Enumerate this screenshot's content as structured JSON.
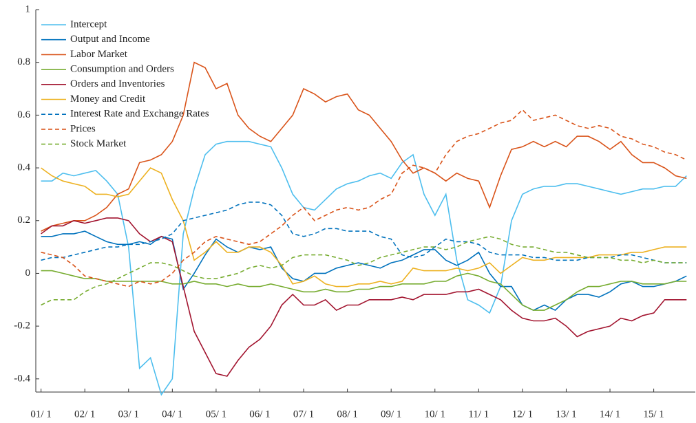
{
  "chart_data": {
    "type": "line",
    "x": [
      2001,
      2001.25,
      2001.5,
      2001.75,
      2002,
      2002.25,
      2002.5,
      2002.75,
      2003,
      2003.25,
      2003.5,
      2003.75,
      2004,
      2004.25,
      2004.5,
      2004.75,
      2005,
      2005.25,
      2005.5,
      2005.75,
      2006,
      2006.25,
      2006.5,
      2006.75,
      2007,
      2007.25,
      2007.5,
      2007.75,
      2008,
      2008.25,
      2008.5,
      2008.75,
      2009,
      2009.25,
      2009.5,
      2009.75,
      2010,
      2010.25,
      2010.5,
      2010.75,
      2011,
      2011.25,
      2011.5,
      2011.75,
      2012,
      2012.25,
      2012.5,
      2012.75,
      2013,
      2013.25,
      2013.5,
      2013.75,
      2014,
      2014.25,
      2014.5,
      2014.75,
      2015,
      2015.25,
      2015.5,
      2015.75
    ],
    "series": [
      {
        "name": "Intercept",
        "color": "#4dbeee",
        "dash": false,
        "values": [
          0.35,
          0.35,
          0.38,
          0.37,
          0.38,
          0.39,
          0.35,
          0.3,
          0.1,
          -0.36,
          -0.32,
          -0.46,
          -0.4,
          0.15,
          0.32,
          0.45,
          0.49,
          0.5,
          0.5,
          0.5,
          0.49,
          0.48,
          0.4,
          0.3,
          0.25,
          0.24,
          0.28,
          0.32,
          0.34,
          0.35,
          0.37,
          0.38,
          0.36,
          0.42,
          0.45,
          0.3,
          0.22,
          0.3,
          0.05,
          -0.1,
          -0.12,
          -0.15,
          -0.05,
          0.2,
          0.3,
          0.32,
          0.33,
          0.33,
          0.34,
          0.34,
          0.33,
          0.32,
          0.31,
          0.3,
          0.31,
          0.32,
          0.32,
          0.33,
          0.33,
          0.37
        ]
      },
      {
        "name": "Output and Income",
        "color": "#0072bd",
        "dash": false,
        "values": [
          0.14,
          0.14,
          0.15,
          0.15,
          0.16,
          0.14,
          0.12,
          0.11,
          0.11,
          0.12,
          0.11,
          0.14,
          0.13,
          -0.06,
          0.0,
          0.07,
          0.13,
          0.1,
          0.08,
          0.1,
          0.09,
          0.1,
          0.02,
          -0.02,
          -0.03,
          0.0,
          0.0,
          0.02,
          0.03,
          0.04,
          0.03,
          0.02,
          0.04,
          0.05,
          0.07,
          0.09,
          0.09,
          0.05,
          0.03,
          0.05,
          0.08,
          0.0,
          -0.05,
          -0.05,
          -0.12,
          -0.14,
          -0.12,
          -0.14,
          -0.1,
          -0.08,
          -0.08,
          -0.09,
          -0.07,
          -0.04,
          -0.03,
          -0.05,
          -0.05,
          -0.04,
          -0.03,
          -0.01
        ]
      },
      {
        "name": "Labor Market",
        "color": "#d95319",
        "dash": false,
        "values": [
          0.16,
          0.18,
          0.19,
          0.2,
          0.2,
          0.22,
          0.25,
          0.3,
          0.32,
          0.42,
          0.43,
          0.45,
          0.5,
          0.6,
          0.8,
          0.78,
          0.7,
          0.72,
          0.6,
          0.55,
          0.52,
          0.5,
          0.55,
          0.6,
          0.7,
          0.68,
          0.65,
          0.67,
          0.68,
          0.62,
          0.6,
          0.55,
          0.5,
          0.43,
          0.38,
          0.4,
          0.38,
          0.35,
          0.38,
          0.36,
          0.35,
          0.25,
          0.37,
          0.47,
          0.48,
          0.5,
          0.48,
          0.5,
          0.48,
          0.52,
          0.52,
          0.5,
          0.47,
          0.5,
          0.45,
          0.42,
          0.42,
          0.4,
          0.37,
          0.36
        ]
      },
      {
        "name": "Consumption and Orders",
        "color": "#77ac30",
        "dash": false,
        "values": [
          0.01,
          0.01,
          0,
          -0.01,
          -0.02,
          -0.02,
          -0.03,
          -0.03,
          -0.03,
          -0.03,
          -0.03,
          -0.03,
          -0.04,
          -0.04,
          -0.03,
          -0.04,
          -0.04,
          -0.05,
          -0.04,
          -0.05,
          -0.05,
          -0.04,
          -0.05,
          -0.06,
          -0.07,
          -0.07,
          -0.06,
          -0.07,
          -0.07,
          -0.06,
          -0.06,
          -0.05,
          -0.05,
          -0.04,
          -0.04,
          -0.04,
          -0.03,
          -0.03,
          -0.01,
          0,
          -0.01,
          -0.03,
          -0.04,
          -0.08,
          -0.12,
          -0.14,
          -0.14,
          -0.12,
          -0.1,
          -0.07,
          -0.05,
          -0.05,
          -0.04,
          -0.03,
          -0.03,
          -0.04,
          -0.04,
          -0.04,
          -0.03,
          -0.03
        ]
      },
      {
        "name": "Orders and Inventories",
        "color": "#a2142f",
        "dash": false,
        "values": [
          0.15,
          0.18,
          0.18,
          0.2,
          0.19,
          0.2,
          0.21,
          0.21,
          0.2,
          0.15,
          0.12,
          0.14,
          0.12,
          -0.05,
          -0.22,
          -0.3,
          -0.38,
          -0.39,
          -0.33,
          -0.28,
          -0.25,
          -0.2,
          -0.12,
          -0.08,
          -0.12,
          -0.12,
          -0.1,
          -0.14,
          -0.12,
          -0.12,
          -0.1,
          -0.1,
          -0.1,
          -0.09,
          -0.1,
          -0.08,
          -0.08,
          -0.08,
          -0.07,
          -0.07,
          -0.06,
          -0.08,
          -0.1,
          -0.14,
          -0.17,
          -0.18,
          -0.18,
          -0.17,
          -0.2,
          -0.24,
          -0.22,
          -0.21,
          -0.2,
          -0.17,
          -0.18,
          -0.16,
          -0.15,
          -0.1,
          -0.1,
          -0.1
        ]
      },
      {
        "name": "Money and Credit",
        "color": "#edb120",
        "dash": false,
        "values": [
          0.4,
          0.37,
          0.35,
          0.34,
          0.33,
          0.3,
          0.3,
          0.29,
          0.3,
          0.35,
          0.4,
          0.38,
          0.28,
          0.2,
          0.05,
          0.08,
          0.12,
          0.08,
          0.08,
          0.1,
          0.1,
          0.08,
          0.03,
          -0.04,
          -0.03,
          -0.01,
          -0.04,
          -0.05,
          -0.05,
          -0.04,
          -0.04,
          -0.03,
          -0.04,
          -0.03,
          0.02,
          0.01,
          0.01,
          0.01,
          0.02,
          0.01,
          0.02,
          0.04,
          0.0,
          0.03,
          0.06,
          0.05,
          0.05,
          0.06,
          0.06,
          0.06,
          0.06,
          0.07,
          0.07,
          0.07,
          0.08,
          0.08,
          0.09,
          0.1,
          0.1,
          0.1
        ]
      },
      {
        "name": "Interest Rate and Exchange Rates",
        "color": "#0072bd",
        "dash": true,
        "values": [
          0.05,
          0.06,
          0.06,
          0.07,
          0.08,
          0.09,
          0.1,
          0.1,
          0.11,
          0.11,
          0.12,
          0.13,
          0.15,
          0.2,
          0.21,
          0.22,
          0.23,
          0.24,
          0.26,
          0.27,
          0.27,
          0.26,
          0.22,
          0.15,
          0.14,
          0.15,
          0.17,
          0.17,
          0.16,
          0.16,
          0.16,
          0.14,
          0.13,
          0.07,
          0.06,
          0.07,
          0.1,
          0.13,
          0.12,
          0.12,
          0.11,
          0.08,
          0.07,
          0.07,
          0.07,
          0.06,
          0.06,
          0.05,
          0.05,
          0.05,
          0.06,
          0.06,
          0.06,
          0.07,
          0.07,
          0.06,
          0.05,
          0.04,
          0.04,
          0.04
        ]
      },
      {
        "name": "Prices",
        "color": "#d95319",
        "dash": true,
        "values": [
          0.08,
          0.07,
          0.06,
          0.03,
          -0.01,
          -0.02,
          -0.03,
          -0.04,
          -0.05,
          -0.03,
          -0.04,
          -0.03,
          0.0,
          0.05,
          0.08,
          0.12,
          0.14,
          0.13,
          0.12,
          0.11,
          0.12,
          0.15,
          0.18,
          0.22,
          0.25,
          0.2,
          0.22,
          0.24,
          0.25,
          0.24,
          0.25,
          0.28,
          0.3,
          0.38,
          0.41,
          0.4,
          0.38,
          0.45,
          0.5,
          0.52,
          0.53,
          0.55,
          0.57,
          0.58,
          0.62,
          0.58,
          0.59,
          0.6,
          0.58,
          0.56,
          0.55,
          0.56,
          0.55,
          0.52,
          0.51,
          0.49,
          0.48,
          0.46,
          0.45,
          0.43
        ]
      },
      {
        "name": "Stock Market",
        "color": "#77ac30",
        "dash": true,
        "values": [
          -0.12,
          -0.1,
          -0.1,
          -0.1,
          -0.07,
          -0.05,
          -0.04,
          -0.02,
          0,
          0.02,
          0.04,
          0.04,
          0.03,
          0.01,
          -0.01,
          -0.02,
          -0.02,
          -0.01,
          0,
          0.02,
          0.03,
          0.02,
          0.03,
          0.06,
          0.07,
          0.07,
          0.07,
          0.06,
          0.05,
          0.03,
          0.04,
          0.06,
          0.07,
          0.08,
          0.09,
          0.1,
          0.1,
          0.09,
          0.1,
          0.12,
          0.13,
          0.14,
          0.13,
          0.11,
          0.1,
          0.1,
          0.09,
          0.08,
          0.08,
          0.07,
          0.06,
          0.06,
          0.06,
          0.05,
          0.05,
          0.04,
          0.05,
          0.04,
          0.04,
          0.04
        ]
      }
    ],
    "xlim": [
      2000.88,
      2015.95
    ],
    "ylim": [
      -0.45,
      1
    ],
    "yticks": [
      -0.4,
      -0.2,
      0,
      0.2,
      0.4,
      0.6,
      0.8,
      1
    ],
    "xticks": [
      {
        "value": 2001,
        "label": "01/ 1"
      },
      {
        "value": 2002,
        "label": "02/ 1"
      },
      {
        "value": 2003,
        "label": "03/ 1"
      },
      {
        "value": 2004,
        "label": "04/ 1"
      },
      {
        "value": 2005,
        "label": "05/ 1"
      },
      {
        "value": 2006,
        "label": "06/ 1"
      },
      {
        "value": 2007,
        "label": "07/ 1"
      },
      {
        "value": 2008,
        "label": "08/ 1"
      },
      {
        "value": 2009,
        "label": "09/ 1"
      },
      {
        "value": 2010,
        "label": "10/ 1"
      },
      {
        "value": 2011,
        "label": "11/ 1"
      },
      {
        "value": 2012,
        "label": "12/ 1"
      },
      {
        "value": 2013,
        "label": "13/ 1"
      },
      {
        "value": 2014,
        "label": "14/ 1"
      },
      {
        "value": 2015,
        "label": "15/ 1"
      }
    ],
    "legend": "upper left",
    "grid": false
  }
}
